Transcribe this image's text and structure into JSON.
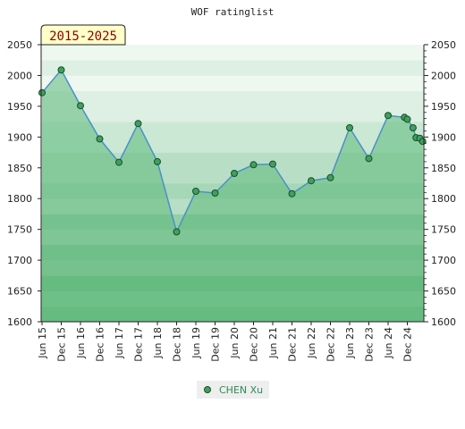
{
  "chart_data": {
    "type": "area",
    "title": "WOF ratinglist",
    "badge": "2015-2025",
    "ylim": [
      1600,
      2050
    ],
    "yticks": [
      1600,
      1650,
      1700,
      1750,
      1800,
      1850,
      1900,
      1950,
      2000,
      2050
    ],
    "xticks": [
      "Jun 15",
      "Dec 15",
      "Jun 16",
      "Dec 16",
      "Jun 17",
      "Dec 17",
      "Jun 18",
      "Dec 18",
      "Jun 19",
      "Dec 19",
      "Jun 20",
      "Dec 20",
      "Jun 21",
      "Dec 21",
      "Jun 22",
      "Dec 22",
      "Jun 23",
      "Dec 23",
      "Jun 24",
      "Dec 24"
    ],
    "series": [
      {
        "name": "CHEN Xu",
        "points": [
          {
            "t": 0,
            "v": 1972
          },
          {
            "t": 1,
            "v": 2009
          },
          {
            "t": 2,
            "v": 1951
          },
          {
            "t": 3,
            "v": 1897
          },
          {
            "t": 4,
            "v": 1859
          },
          {
            "t": 5,
            "v": 1922
          },
          {
            "t": 6,
            "v": 1860
          },
          {
            "t": 7,
            "v": 1746
          },
          {
            "t": 8,
            "v": 1812
          },
          {
            "t": 9,
            "v": 1809
          },
          {
            "t": 10,
            "v": 1841
          },
          {
            "t": 11,
            "v": 1855
          },
          {
            "t": 12,
            "v": 1856
          },
          {
            "t": 13,
            "v": 1808
          },
          {
            "t": 14,
            "v": 1829
          },
          {
            "t": 15,
            "v": 1834
          },
          {
            "t": 16,
            "v": 1915
          },
          {
            "t": 17,
            "v": 1865
          },
          {
            "t": 18,
            "v": 1935
          },
          {
            "t": 18.85,
            "v": 1932
          },
          {
            "t": 19,
            "v": 1929
          },
          {
            "t": 19.3,
            "v": 1915
          },
          {
            "t": 19.45,
            "v": 1899
          },
          {
            "t": 19.65,
            "v": 1898
          },
          {
            "t": 19.8,
            "v": 1893
          }
        ]
      }
    ],
    "colors": {
      "line": "#4a90c8",
      "area": "#5cb87a",
      "marker_fill": "#3fa05e",
      "marker_stroke": "#1a4d2a",
      "badge_bg": "#ffffc8",
      "legend_bg": "#eeeeee"
    },
    "grid": true,
    "legend": "bottom-center"
  }
}
